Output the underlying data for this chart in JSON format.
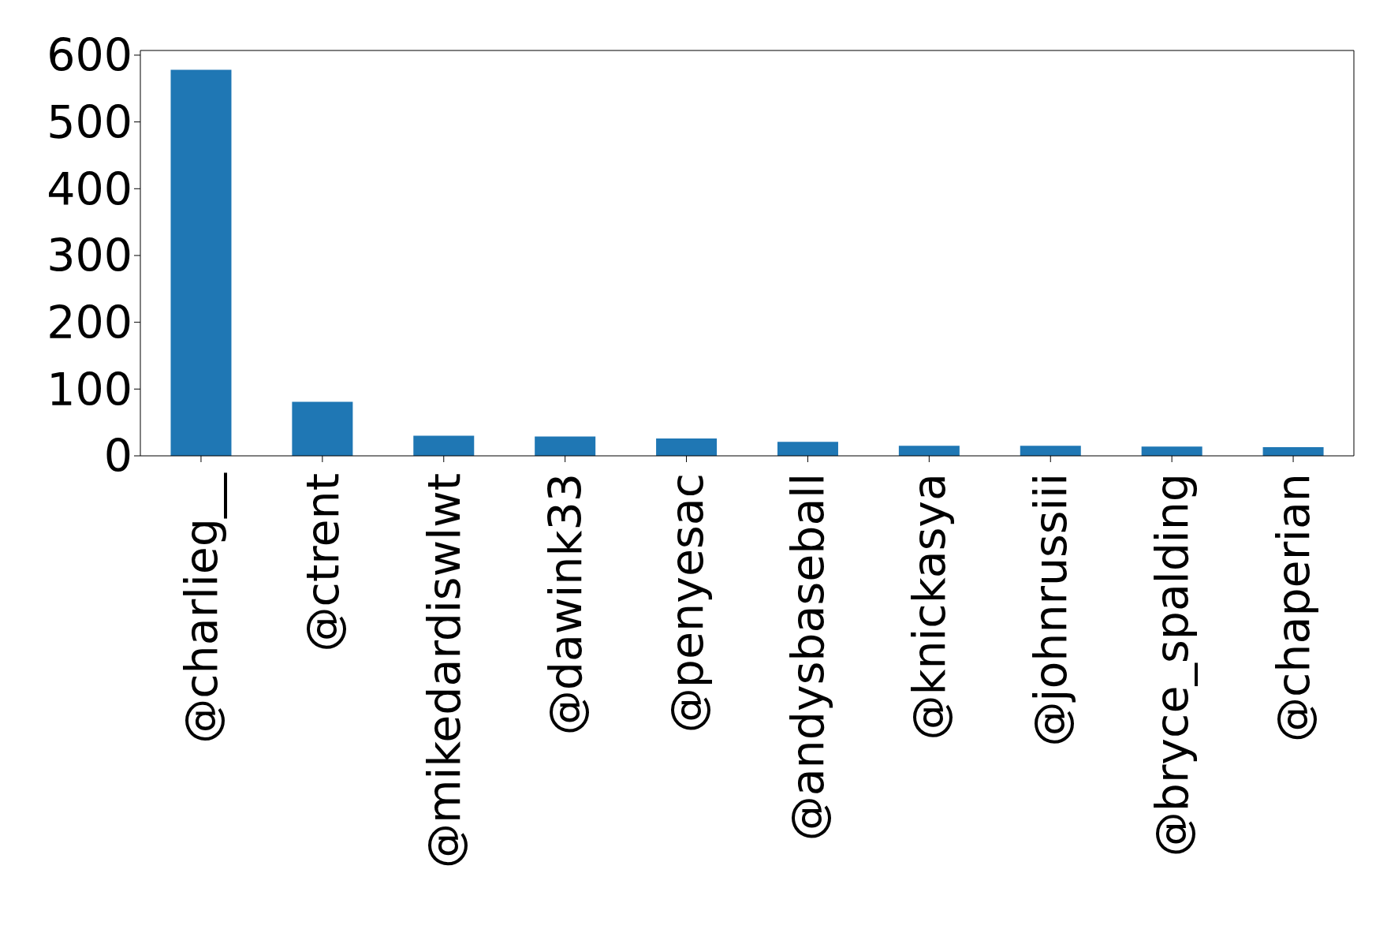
{
  "chart_data": {
    "type": "bar",
    "categories": [
      "@charlieg__",
      "@ctrent",
      "@mikedardiswlwt",
      "@dawink33",
      "@penyesac",
      "@andysbaseball",
      "@knickasya",
      "@johnrussiii",
      "@bryce_spalding",
      "@chaperian"
    ],
    "values": [
      578,
      81,
      30,
      29,
      26,
      21,
      15,
      15,
      14,
      13
    ],
    "color": "#1f77b4",
    "ylim": [
      0,
      607
    ],
    "yticks": [
      0,
      100,
      200,
      300,
      400,
      500,
      600
    ]
  }
}
